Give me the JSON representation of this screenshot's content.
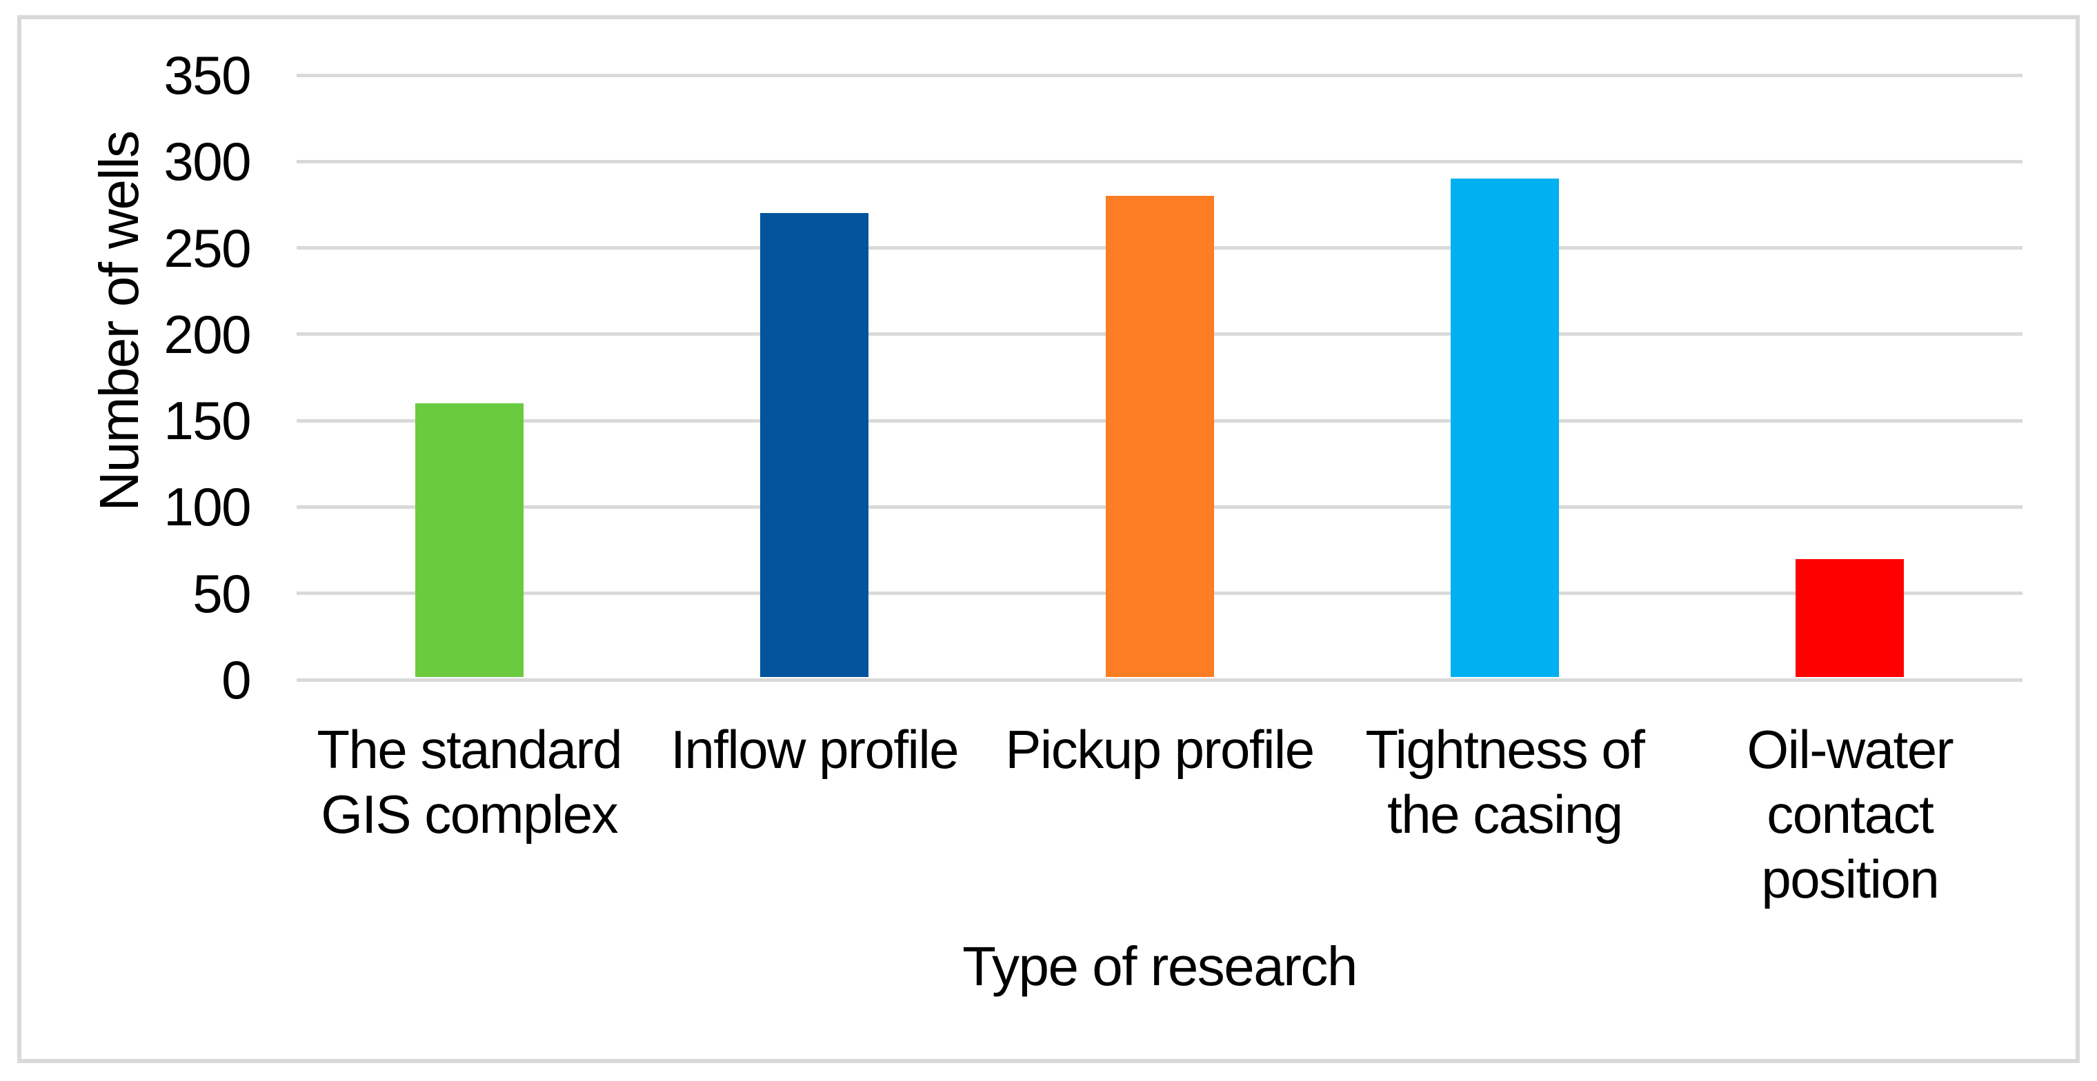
{
  "figure": {
    "background_color": "#ffffff",
    "frame_border_color": "#d9d9d9",
    "text_color": "#000000"
  },
  "chart_data": {
    "type": "bar",
    "title": "",
    "categories": [
      "The standard GIS complex",
      "Inflow profile",
      "Pickup profile",
      "Tightness of the casing",
      "Oil-water contact position"
    ],
    "category_lines": [
      [
        "The standard",
        "GIS complex"
      ],
      [
        "Inflow profile"
      ],
      [
        "Pickup profile"
      ],
      [
        "Tightness of",
        "the casing"
      ],
      [
        "Oil-water",
        "contact",
        "position"
      ]
    ],
    "values": [
      160,
      270,
      280,
      290,
      70
    ],
    "bar_colors": [
      "#6bcb3f",
      "#02549c",
      "#fc7d23",
      "#00b0f0",
      "#ff0000"
    ],
    "xlabel": "Type of research",
    "ylabel": "Number of wells",
    "ylim": [
      0,
      350
    ],
    "yticks": [
      350,
      300,
      250,
      200,
      150,
      100,
      50,
      0
    ],
    "grid": "horizontal",
    "gridline_color": "#d9d9d9",
    "legend": "none"
  }
}
